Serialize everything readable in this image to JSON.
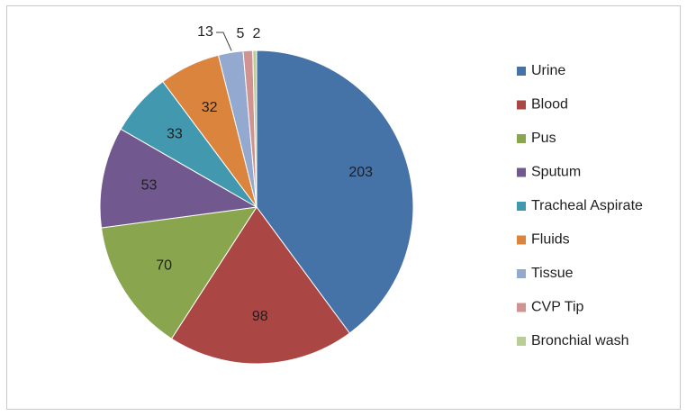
{
  "chart_data": {
    "type": "pie",
    "title": "",
    "categories": [
      "Urine",
      "Blood",
      "Pus",
      "Sputum",
      "Tracheal Aspirate",
      "Fluids",
      "Tissue",
      "CVP Tip",
      "Bronchial wash"
    ],
    "values": [
      203,
      98,
      70,
      53,
      33,
      32,
      13,
      5,
      2
    ],
    "colors": [
      "#4572A7",
      "#AA4643",
      "#89A54E",
      "#71588F",
      "#4198AF",
      "#DB843D",
      "#93A9CF",
      "#D19392",
      "#B9CD96"
    ],
    "data_labels": [
      "203",
      "98",
      "70",
      "53",
      "33",
      "32",
      "13",
      "5",
      "2"
    ],
    "legend_position": "right"
  }
}
